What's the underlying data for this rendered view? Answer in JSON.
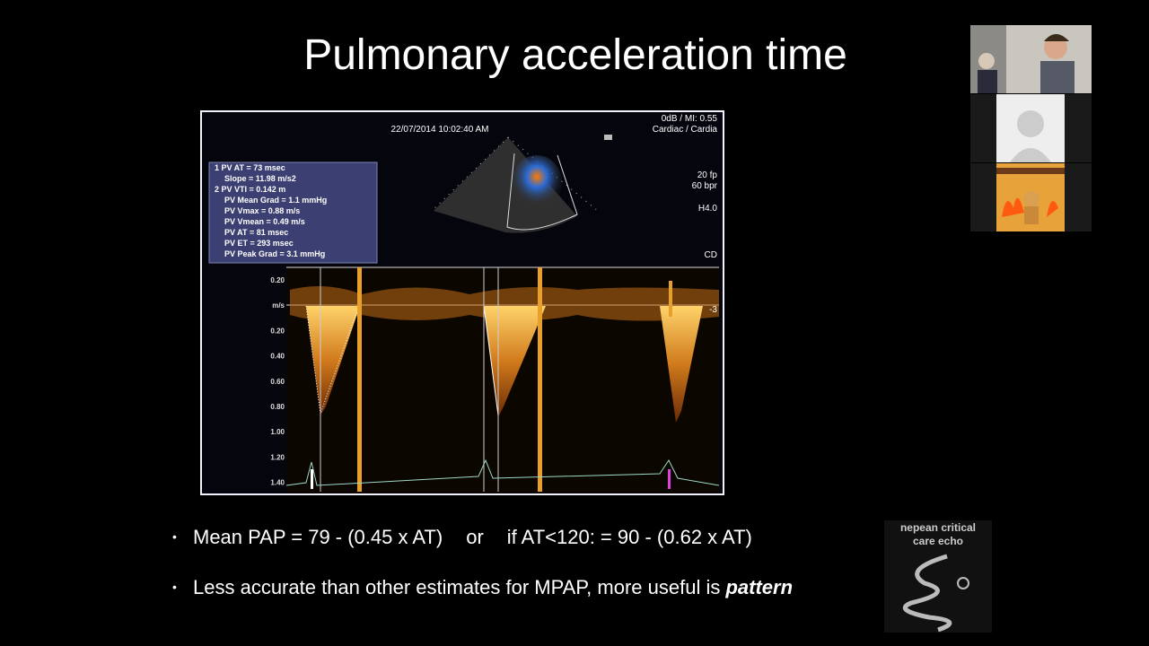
{
  "slide": {
    "title": "Pulmonary acceleration time",
    "echo": {
      "timestamp": "22/07/2014 10:02:40 AM",
      "top_right": [
        "0dB / MI: 0.55",
        "Cardiac / Cardia"
      ],
      "side_labels": [
        "20 fp",
        "60 bpr",
        "H4.0",
        "CD"
      ],
      "measurements": [
        "1  PV AT = 73 msec",
        "Slope = 11.98 m/s2",
        "2  PV VTI = 0.142 m",
        "PV Mean Grad = 1.1 mmHg",
        "PV Vmax = 0.88 m/s",
        "PV Vmean = 0.49 m/s",
        "PV AT = 81 msec",
        "PV ET = 293 msec",
        "PV Peak Grad = 3.1 mmHg"
      ],
      "scale_labels": [
        "0.20",
        "m/s",
        "0.20",
        "0.40",
        "0.60",
        "0.80",
        "1.00",
        "1.20",
        "1.40"
      ],
      "right_scale": "-3"
    },
    "bullets": [
      {
        "parts": [
          "Mean PAP = 79 - (0.45 x AT)",
          "or",
          "if AT<120: = 90 - (0.62 x AT)"
        ]
      },
      {
        "text": "Less accurate than other estimates for MPAP, more useful is ",
        "emphasis": "pattern"
      }
    ],
    "logo": [
      "nepean critical",
      "care echo"
    ]
  }
}
